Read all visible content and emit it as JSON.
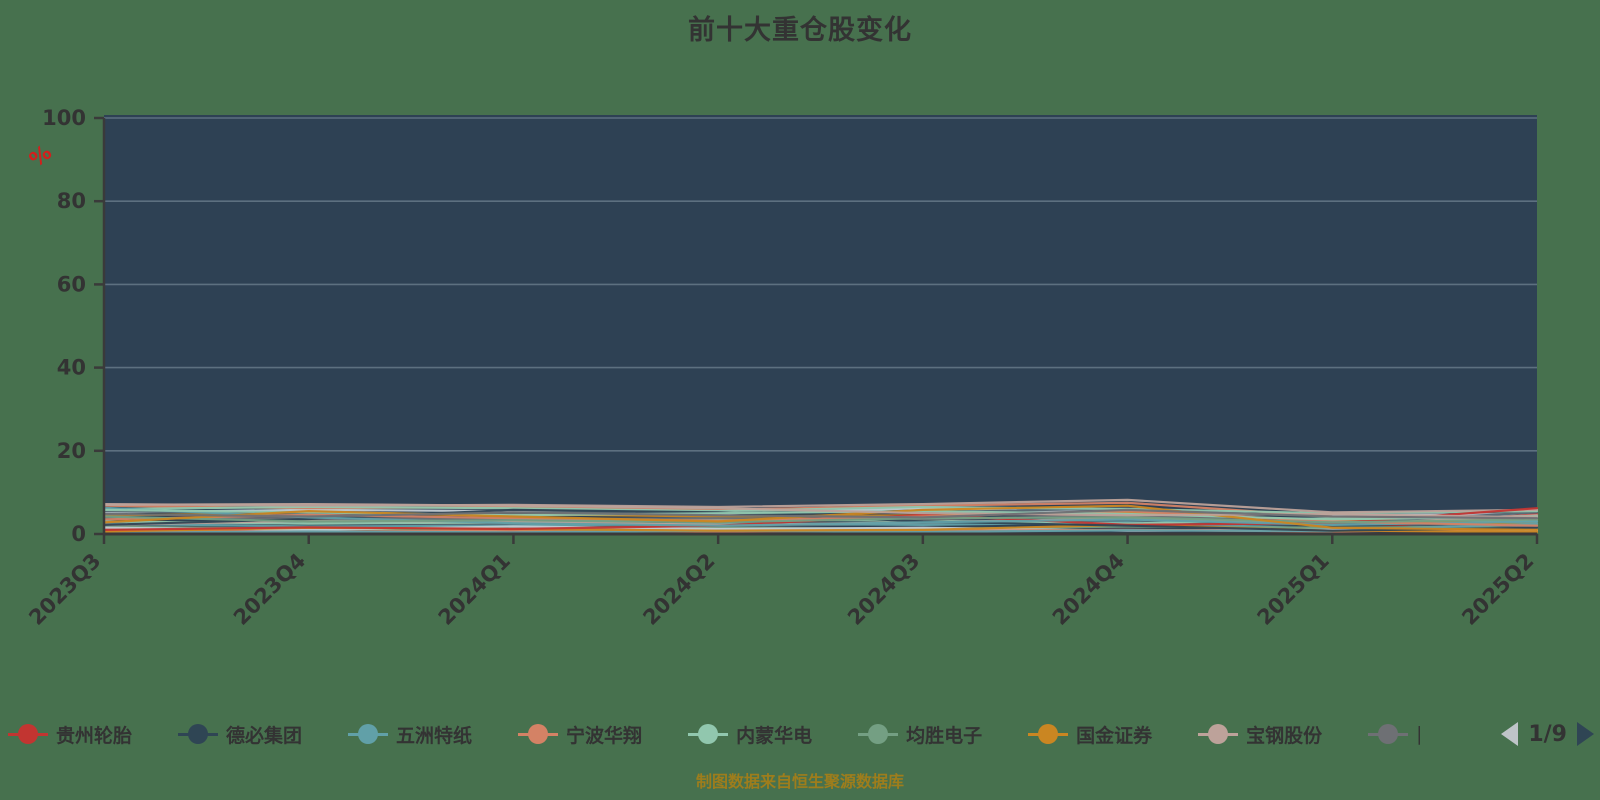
{
  "title": "前十大重仓股变化",
  "caption": "制图数据来自恒生聚源数据库",
  "colors": {
    "background": "#47714e",
    "plot_bg": "#2e4154",
    "grid_line": "#5d7080",
    "axis_line": "#3a3a3a",
    "text": "#333333",
    "caption": "#9e7d1c",
    "unit": "#d41e1c",
    "pager_prev": "#bfc4c8",
    "pager_next": "#2f4554"
  },
  "y_axis": {
    "name": "%",
    "ticks": [
      0,
      20,
      40,
      60,
      80,
      100
    ],
    "min": 0,
    "max": 100
  },
  "legend": {
    "items": [
      {
        "label": "贵州轮胎",
        "color": "#c23531",
        "truncated": false
      },
      {
        "label": "德必集团",
        "color": "#2f4554",
        "truncated": false
      },
      {
        "label": "五洲特纸",
        "color": "#61a0a8",
        "truncated": false
      },
      {
        "label": "宁波华翔",
        "color": "#d48265",
        "truncated": false
      },
      {
        "label": "内蒙华电",
        "color": "#91c7ae",
        "truncated": false
      },
      {
        "label": "均胜电子",
        "color": "#749f83",
        "truncated": false
      },
      {
        "label": "国金证券",
        "color": "#ca8622",
        "truncated": false
      },
      {
        "label": "宝钢股份",
        "color": "#bda29a",
        "truncated": false
      },
      {
        "label": "|",
        "color": "#6e7074",
        "truncated": true
      }
    ],
    "page_indicator": "1/9"
  },
  "chart_data": {
    "type": "line",
    "title": "前十大重仓股变化",
    "ylabel": "%",
    "ylim": [
      0,
      100
    ],
    "grid": true,
    "legend_position": "bottom",
    "x": [
      "2023Q3",
      "2023Q4",
      "2024Q1",
      "2024Q2",
      "2024Q3",
      "2024Q4",
      "2025Q1",
      "2025Q2"
    ],
    "series": [
      {
        "name": "贵州轮胎",
        "color": "#c23531",
        "values": [
          1.0,
          1.6,
          1.2,
          2.0,
          4.6,
          2.2,
          2.6,
          6.2
        ]
      },
      {
        "name": "德必集团",
        "color": "#2f4554",
        "values": [
          2.2,
          3.6,
          5.8,
          5.2,
          3.0,
          2.0,
          0.8,
          1.5
        ]
      },
      {
        "name": "五洲特纸",
        "color": "#61a0a8",
        "values": [
          6.3,
          4.0,
          2.6,
          2.0,
          2.8,
          3.5,
          2.2,
          3.0
        ]
      },
      {
        "name": "宁波华翔",
        "color": "#d48265",
        "values": [
          3.5,
          4.6,
          3.8,
          3.2,
          4.2,
          5.5,
          3.0,
          2.0
        ]
      },
      {
        "name": "内蒙华电",
        "color": "#91c7ae",
        "values": [
          5.8,
          5.2,
          4.5,
          5.0,
          5.5,
          4.8,
          3.5,
          4.2
        ]
      },
      {
        "name": "均胜电子",
        "color": "#749f83",
        "values": [
          4.2,
          3.0,
          3.3,
          2.8,
          3.8,
          4.0,
          2.8,
          3.5
        ]
      },
      {
        "name": "国金证券",
        "color": "#ca8622",
        "values": [
          2.8,
          5.5,
          4.2,
          3.0,
          5.8,
          6.8,
          1.5,
          1.0
        ]
      },
      {
        "name": "宝钢股份",
        "color": "#bda29a",
        "values": [
          7.0,
          7.2,
          6.8,
          6.2,
          5.0,
          4.5,
          4.8,
          4.0
        ]
      },
      {
        "name": "|",
        "color": "#6e7074",
        "values": [
          4.8,
          4.2,
          5.2,
          4.5,
          4.0,
          5.8,
          4.2,
          3.8
        ]
      }
    ],
    "unlabeled_series": [
      {
        "color": "#546570",
        "values": [
          2.0,
          2.8,
          2.2,
          1.8,
          2.5,
          3.2,
          1.8,
          2.8
        ]
      },
      {
        "color": "#c4ccd3",
        "values": [
          5.2,
          5.8,
          5.5,
          4.8,
          6.2,
          5.2,
          4.5,
          4.8
        ]
      },
      {
        "color": "#c23531",
        "values": [
          0.5,
          0.8,
          0.6,
          1.0,
          0.7,
          1.2,
          0.9,
          4.8
        ]
      },
      {
        "color": "#2f4554",
        "values": [
          1.2,
          2.2,
          1.5,
          1.0,
          1.8,
          1.2,
          2.0,
          1.2
        ]
      },
      {
        "color": "#61a0a8",
        "values": [
          2.5,
          1.8,
          2.0,
          2.5,
          2.2,
          2.8,
          1.2,
          2.2
        ]
      },
      {
        "color": "#d48265",
        "values": [
          6.8,
          6.2,
          6.5,
          5.8,
          6.8,
          7.5,
          4.2,
          3.5
        ]
      },
      {
        "color": "#91c7ae",
        "values": [
          3.0,
          2.5,
          2.8,
          3.5,
          3.2,
          2.5,
          3.8,
          3.0
        ]
      },
      {
        "color": "#749f83",
        "values": [
          1.8,
          1.2,
          1.0,
          1.5,
          1.2,
          1.8,
          1.5,
          1.8
        ]
      },
      {
        "color": "#ca8622",
        "values": [
          4.5,
          5.0,
          4.8,
          4.2,
          4.5,
          5.2,
          3.2,
          2.5
        ]
      },
      {
        "color": "#bda29a",
        "values": [
          2.2,
          3.2,
          3.0,
          2.2,
          2.8,
          3.8,
          2.5,
          4.5
        ]
      },
      {
        "color": "#6e7074",
        "values": [
          3.8,
          3.8,
          3.5,
          3.8,
          3.5,
          4.5,
          3.0,
          1.8
        ]
      },
      {
        "color": "#546570",
        "values": [
          5.5,
          4.8,
          5.0,
          5.5,
          5.2,
          6.2,
          2.5,
          5.2
        ]
      },
      {
        "color": "#c4ccd3",
        "values": [
          1.5,
          1.0,
          1.8,
          1.2,
          1.5,
          0.8,
          1.0,
          0.8
        ]
      },
      {
        "color": "#d48265",
        "values": [
          0.8,
          0.5,
          0.9,
          0.6,
          0.8,
          1.0,
          0.6,
          1.2
        ]
      },
      {
        "color": "#91c7ae",
        "values": [
          6.0,
          6.5,
          6.2,
          5.5,
          6.5,
          6.0,
          5.0,
          5.5
        ]
      },
      {
        "color": "#61a0a8",
        "values": [
          0.3,
          0.6,
          0.4,
          0.8,
          0.5,
          0.9,
          0.7,
          2.5
        ]
      },
      {
        "color": "#bda29a",
        "values": [
          7.2,
          6.8,
          7.0,
          6.5,
          7.2,
          8.2,
          5.2,
          5.8
        ]
      },
      {
        "color": "#ca8622",
        "values": [
          0.6,
          1.5,
          1.2,
          0.8,
          1.0,
          2.2,
          0.8,
          0.5
        ]
      }
    ]
  }
}
